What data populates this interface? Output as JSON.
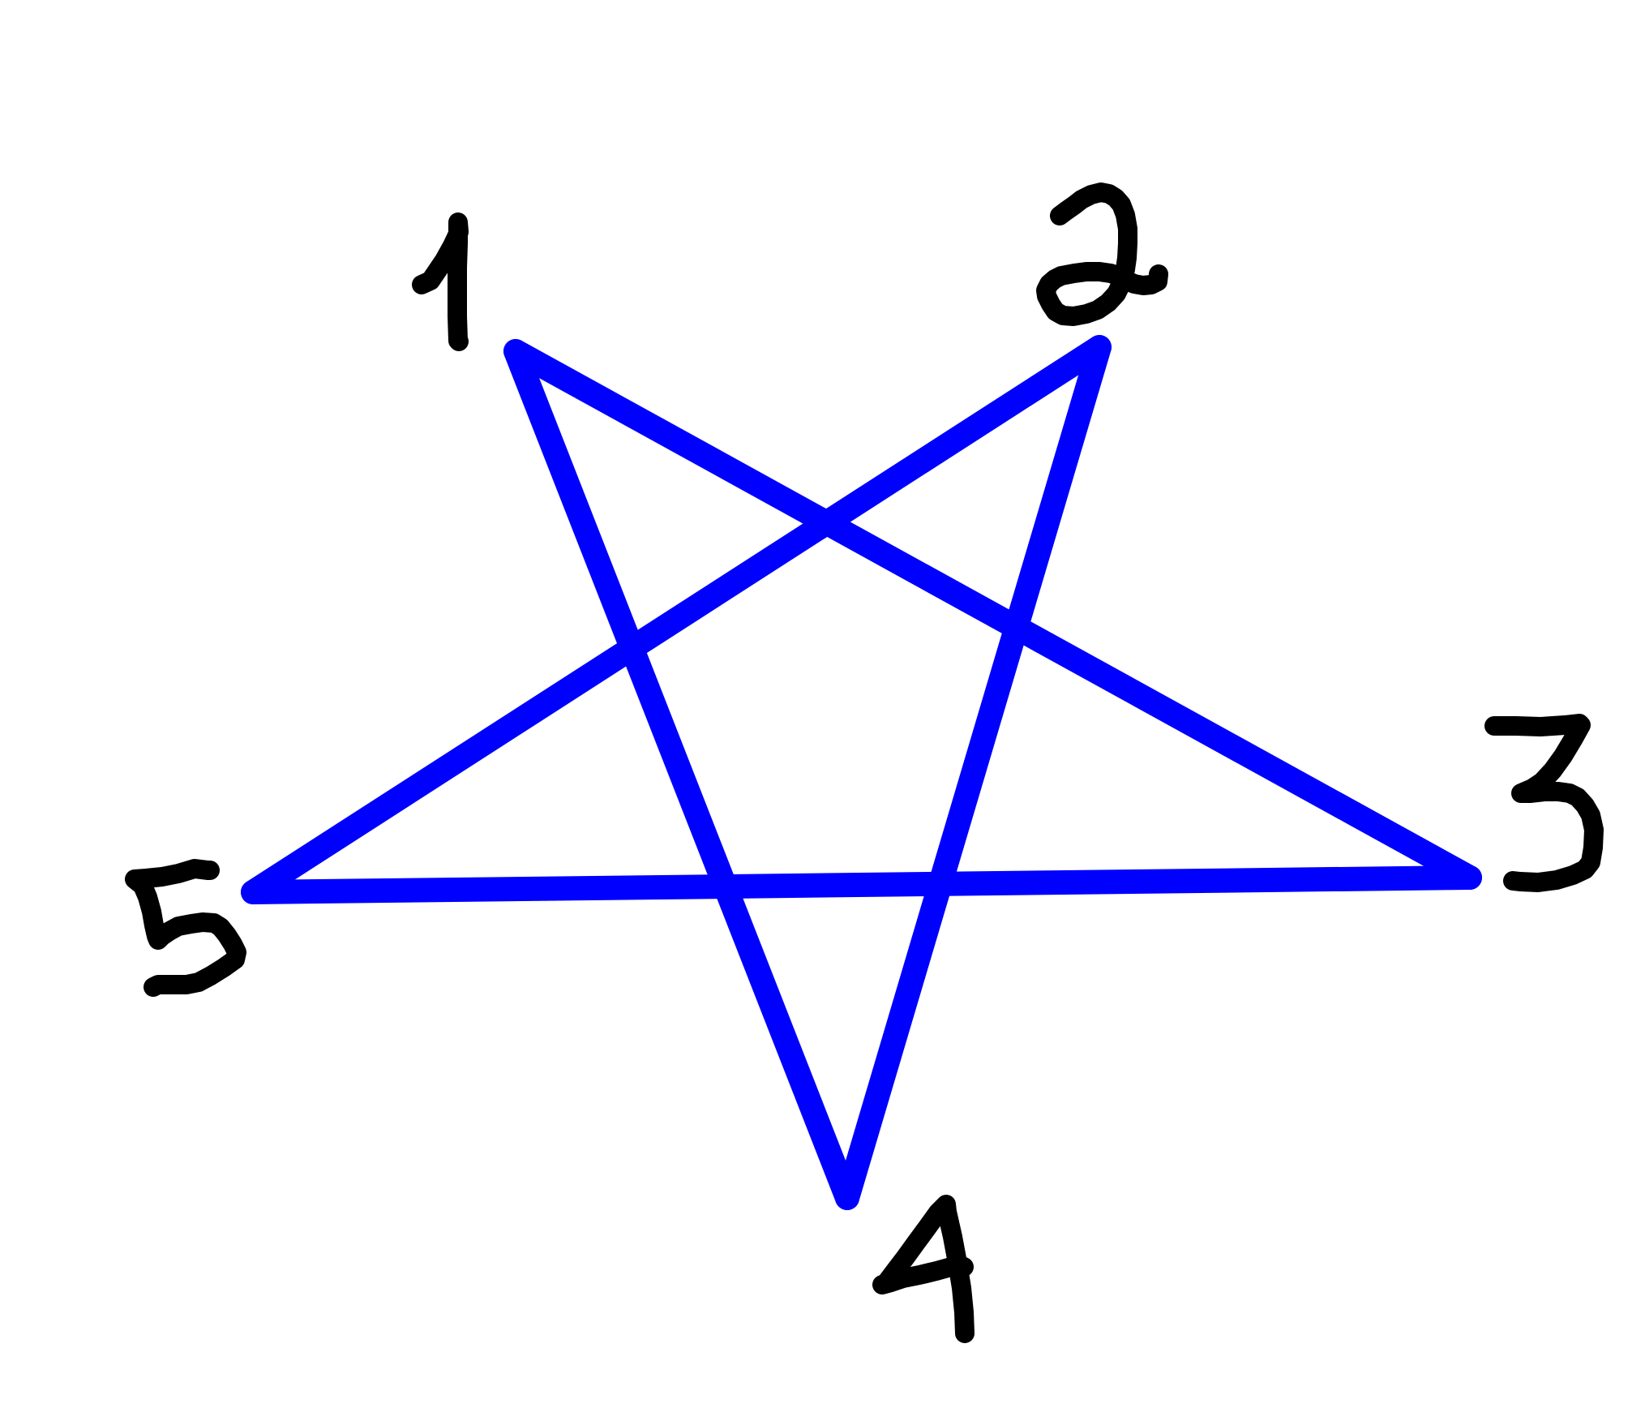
{
  "diagram": {
    "colors": {
      "background": "#ffffff",
      "star": "#0000ff",
      "digits": "#000000"
    },
    "star": {
      "shape": "five-pointed star drawn with straight strokes",
      "vertex_order": [
        "1",
        "2",
        "3",
        "4",
        "5"
      ]
    },
    "labels": [
      {
        "id": "1",
        "text": "1"
      },
      {
        "id": "2",
        "text": "2"
      },
      {
        "id": "3",
        "text": "3"
      },
      {
        "id": "4",
        "text": "4"
      },
      {
        "id": "5",
        "text": "5"
      }
    ]
  }
}
